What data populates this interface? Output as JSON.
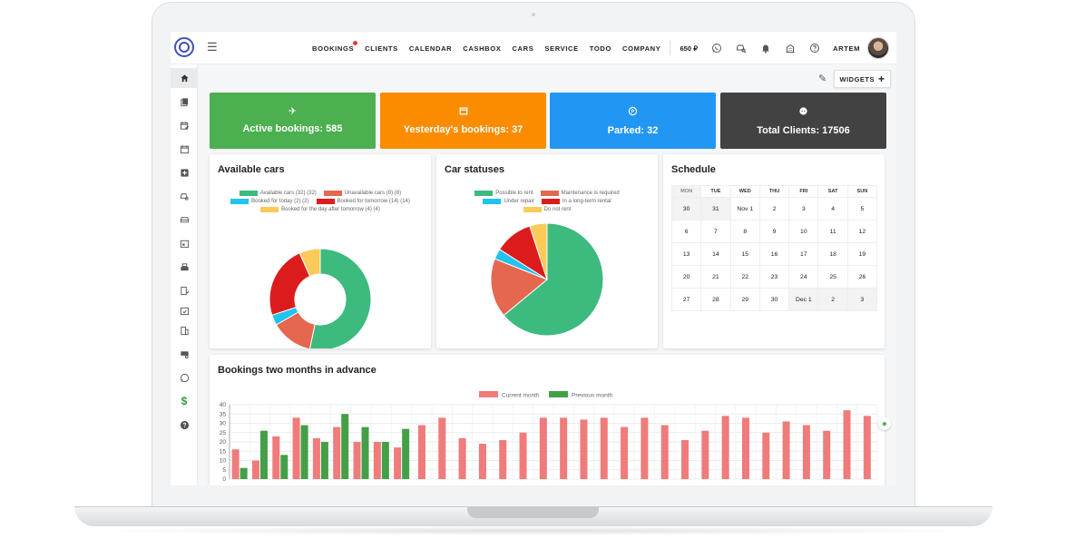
{
  "colors": {
    "green": "#4caf50",
    "orange": "#fb8c00",
    "blue": "#2196f3",
    "dark": "#424242",
    "chart_current": "#f07b7b",
    "chart_previous": "#43a047"
  },
  "header": {
    "nav": [
      {
        "label": "BOOKINGS",
        "badge": true
      },
      {
        "label": "CLIENTS"
      },
      {
        "label": "CALENDAR"
      },
      {
        "label": "CASHBOX"
      },
      {
        "label": "CARS"
      },
      {
        "label": "SERVICE"
      },
      {
        "label": "TODO"
      },
      {
        "label": "COMPANY"
      }
    ],
    "balance": "650 ₽",
    "icons": [
      "whatsapp-icon",
      "car-search-icon",
      "bell-icon",
      "building-icon",
      "help-icon"
    ],
    "user": "ARTEM"
  },
  "sidebar": {
    "icons": [
      "home-icon",
      "documents-icon",
      "calendar-edit-icon",
      "calendar-icon",
      "add-box-icon",
      "car-search-icon",
      "car-icon",
      "calendar-today-icon",
      "cashbox-icon",
      "report-icon",
      "calendar-check-icon",
      "building-icon",
      "truck-settings-icon",
      "whatsapp-icon",
      "dollar-icon",
      "help-icon"
    ]
  },
  "toolbar": {
    "widgets_label": "WIDGETS",
    "widgets_icon": "+"
  },
  "stats": [
    {
      "label": "Active bookings: 585",
      "icon": "airplane-icon",
      "color": "#4caf50"
    },
    {
      "label": "Yesterday's bookings: 37",
      "icon": "calendar-icon",
      "color": "#fb8c00"
    },
    {
      "label": "Parked: 32",
      "icon": "parking-icon",
      "color": "#2196f3"
    },
    {
      "label": "Total Clients: 17506",
      "icon": "face-icon",
      "color": "#424242"
    }
  ],
  "available_cars": {
    "title": "Available cars",
    "legend": [
      {
        "label": "Available cars (32) (32)",
        "color": "#3dba7e"
      },
      {
        "label": "Unavailable cars (8) (8)",
        "color": "#e5674f"
      },
      {
        "label": "Booked for today (2) (2)",
        "color": "#22c3ee"
      },
      {
        "label": "Booked for tomorrow (14) (14)",
        "color": "#dc1c1c"
      },
      {
        "label": "Booked for the day after tomorrow (4) (4)",
        "color": "#fbca58"
      }
    ]
  },
  "car_statuses": {
    "title": "Car statuses",
    "legend": [
      {
        "label": "Possible to rent",
        "color": "#3dba7e"
      },
      {
        "label": "Maintenance is required",
        "color": "#e5674f"
      },
      {
        "label": "Under repair",
        "color": "#22c3ee"
      },
      {
        "label": "In a long-term rental",
        "color": "#dc1c1c"
      },
      {
        "label": "Do not rent",
        "color": "#fbca58"
      }
    ]
  },
  "schedule": {
    "title": "Schedule",
    "days": [
      "MON",
      "TUE",
      "WED",
      "THU",
      "FRI",
      "SAT",
      "SUN"
    ],
    "weeks": [
      [
        "30",
        "31",
        "Nov 1",
        "2",
        "3",
        "4",
        "5"
      ],
      [
        "6",
        "7",
        "8",
        "9",
        "10",
        "11",
        "12"
      ],
      [
        "13",
        "14",
        "15",
        "16",
        "17",
        "18",
        "19"
      ],
      [
        "20",
        "21",
        "22",
        "23",
        "24",
        "25",
        "26"
      ],
      [
        "27",
        "28",
        "29",
        "30",
        "Dec 1",
        "2",
        "3"
      ]
    ]
  },
  "bookings_chart": {
    "title": "Bookings two months in advance"
  },
  "chart_data": [
    {
      "type": "pie",
      "title": "Available cars",
      "donut": true,
      "categories": [
        "Available cars (32) (32)",
        "Unavailable cars (8) (8)",
        "Booked for today (2) (2)",
        "Booked for tomorrow (14) (14)",
        "Booked for the day after tomorrow (4) (4)"
      ],
      "values": [
        32,
        8,
        2,
        14,
        4
      ]
    },
    {
      "type": "pie",
      "title": "Car statuses",
      "categories": [
        "Possible to rent",
        "Maintenance is required",
        "Under repair",
        "In a long-term rental",
        "Do not rent"
      ],
      "values": [
        64,
        17,
        3,
        11,
        5
      ]
    },
    {
      "type": "bar",
      "title": "Bookings two months in advance",
      "ylim": [
        0,
        40
      ],
      "yticks": [
        0,
        5,
        10,
        15,
        20,
        25,
        30,
        35,
        40
      ],
      "series": [
        {
          "name": "Current month",
          "values": [
            16,
            10,
            23,
            33,
            22,
            28,
            20,
            20,
            17,
            29,
            33,
            22,
            19,
            21,
            25,
            33,
            33,
            32,
            33,
            28,
            33,
            29,
            21,
            26,
            34,
            33,
            25,
            31,
            29,
            26,
            37,
            34
          ]
        },
        {
          "name": "Previous month",
          "values": [
            6,
            26,
            13,
            29,
            20,
            35,
            28,
            20,
            27
          ]
        }
      ]
    }
  ]
}
